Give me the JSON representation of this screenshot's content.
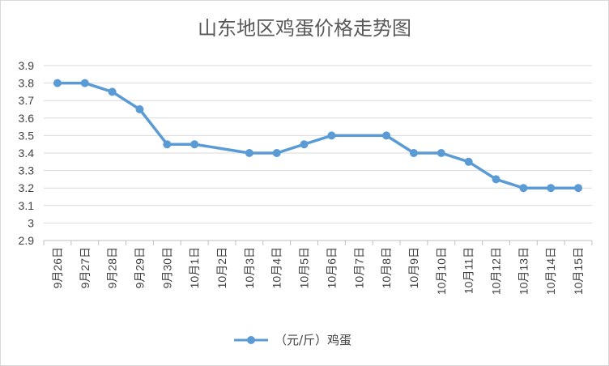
{
  "chart_data": {
    "type": "line",
    "title": "山东地区鸡蛋价格走势图",
    "xlabel": "",
    "ylabel": "",
    "categories": [
      "9月26日",
      "9月27日",
      "9月28日",
      "9月29日",
      "9月30日",
      "10月1日",
      "10月2日",
      "10月3日",
      "10月4日",
      "10月5日",
      "10月6日",
      "10月7日",
      "10月8日",
      "10月9日",
      "10月10日",
      "10月11日",
      "10月12日",
      "10月13日",
      "10月14日",
      "10月15日"
    ],
    "series": [
      {
        "name": "（元/斤）鸡蛋",
        "color": "#5b9bd5",
        "values": [
          3.8,
          3.8,
          3.75,
          3.65,
          3.45,
          3.45,
          null,
          3.4,
          3.4,
          3.45,
          3.5,
          null,
          3.5,
          3.4,
          3.4,
          3.35,
          3.25,
          3.2,
          3.2,
          3.2
        ]
      }
    ],
    "ylim": [
      2.9,
      3.9
    ],
    "yticks": [
      2.9,
      3,
      3.1,
      3.2,
      3.3,
      3.4,
      3.5,
      3.6,
      3.7,
      3.8,
      3.9
    ],
    "ytick_labels": [
      "2.9",
      "3",
      "3.1",
      "3.2",
      "3.3",
      "3.4",
      "3.5",
      "3.6",
      "3.7",
      "3.8",
      "3.9"
    ],
    "grid": true,
    "legend": "bottom"
  }
}
